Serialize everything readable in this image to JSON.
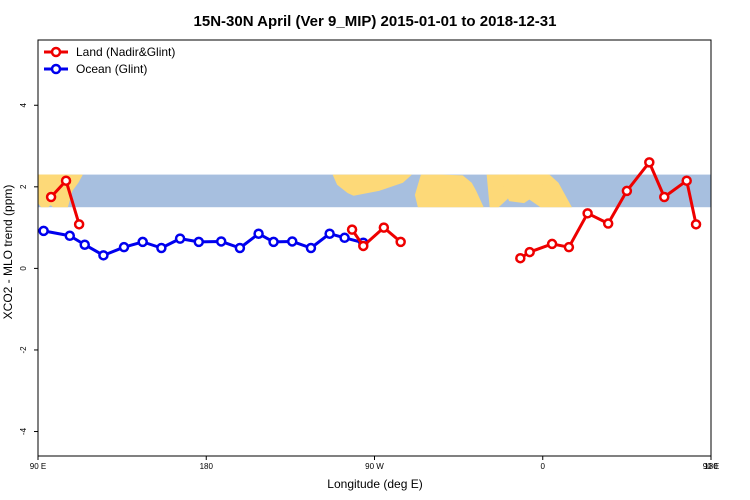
{
  "chart_data": {
    "type": "line",
    "title": "15N-30N April (Ver 9_MIP)   2015-01-01 to 2018-12-31",
    "xlabel": "Longitude (deg E)",
    "ylabel": "XCO2 - MLO trend (ppm)",
    "xlim": [
      90,
      450
    ],
    "ylim": [
      -4.6,
      5.6
    ],
    "x_ticks": [
      {
        "value": 90,
        "label": "90 E"
      },
      {
        "value": 180,
        "label": "180"
      },
      {
        "value": 270,
        "label": "90 W"
      },
      {
        "value": 360,
        "label": "0"
      },
      {
        "value": 450,
        "label": "90 E"
      },
      {
        "value": 540,
        "label": "180"
      }
    ],
    "y_ticks": [
      {
        "value": -4,
        "label": "-4"
      },
      {
        "value": -2,
        "label": "-2"
      },
      {
        "value": 0,
        "label": "0"
      },
      {
        "value": 2,
        "label": "2"
      },
      {
        "value": 4,
        "label": "4"
      }
    ],
    "legend_position": "top-left",
    "map_band": {
      "ymin": 1.5,
      "ymax": 2.3,
      "lat_range": "15N-30N",
      "ocean_color": "#a7bfdf",
      "land_color": "#fdd978"
    },
    "series": [
      {
        "name": "Land (Nadir&Glint)",
        "color": "#ee0000",
        "segments": [
          {
            "x": [
              97,
              105,
              112
            ],
            "y": [
              1.75,
              2.15,
              1.08
            ]
          },
          {
            "x": [
              258,
              264,
              275,
              284
            ],
            "y": [
              0.95,
              0.55,
              1.0,
              0.65
            ]
          },
          {
            "x": [
              348,
              353,
              365,
              374,
              384,
              395,
              405,
              417,
              425,
              437,
              442
            ],
            "y": [
              0.25,
              0.4,
              0.6,
              0.52,
              1.35,
              1.1,
              1.9,
              2.6,
              1.75,
              2.15,
              1.08
            ]
          }
        ]
      },
      {
        "name": "Ocean (Glint)",
        "color": "#0000ee",
        "segments": [
          {
            "x": [
              93,
              107,
              115,
              125,
              136,
              146,
              156,
              166,
              176,
              188,
              198,
              208,
              216,
              226,
              236,
              246,
              254,
              264
            ],
            "y": [
              0.92,
              0.8,
              0.58,
              0.32,
              0.52,
              0.65,
              0.5,
              0.73,
              0.65,
              0.66,
              0.5,
              0.85,
              0.65,
              0.66,
              0.5,
              0.85,
              0.75,
              0.63
            ]
          }
        ]
      }
    ]
  }
}
